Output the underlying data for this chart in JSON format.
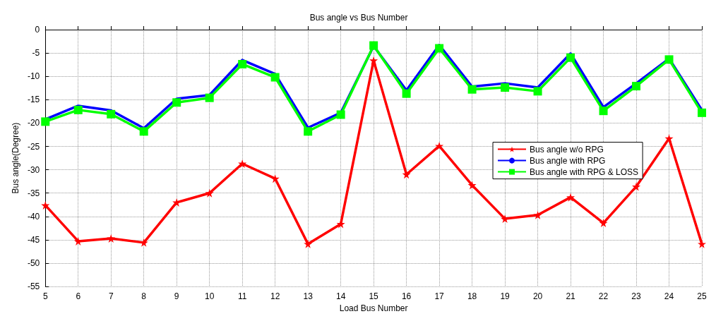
{
  "chart_data": {
    "type": "line",
    "title": "Bus angle vs Bus Number",
    "xlabel": "Load Bus Number",
    "ylabel": "Bus angle(Degree)",
    "x": [
      5,
      6,
      7,
      8,
      9,
      10,
      11,
      12,
      13,
      14,
      15,
      16,
      17,
      18,
      19,
      20,
      21,
      22,
      23,
      24,
      25
    ],
    "xlim": [
      5,
      25
    ],
    "xticks": [
      5,
      6,
      7,
      8,
      9,
      10,
      11,
      12,
      13,
      14,
      15,
      16,
      17,
      18,
      19,
      20,
      21,
      22,
      23,
      24,
      25
    ],
    "ylim": [
      -55,
      0
    ],
    "yticks": [
      -55,
      -50,
      -45,
      -40,
      -35,
      -30,
      -25,
      -20,
      -15,
      -10,
      -5,
      0
    ],
    "grid": true,
    "legend": "right",
    "line_style": "solid",
    "series": [
      {
        "name": "Bus angle w/o RPG",
        "color": "#ff0000",
        "marker": "star",
        "values": [
          -37.6,
          -45.3,
          -44.7,
          -45.6,
          -37,
          -35,
          -28.7,
          -31.9,
          -45.9,
          -41.6,
          -6.6,
          -31,
          -24.9,
          -33.3,
          -40.5,
          -39.7,
          -35.9,
          -41.4,
          -33.6,
          -23.3,
          -45.9
        ]
      },
      {
        "name": "Bus angle with RPG",
        "color": "#0000ff",
        "marker": "none",
        "values": [
          -19.2,
          -16.3,
          -17.3,
          -21.1,
          -14.8,
          -14,
          -6.5,
          -9.5,
          -21,
          -17.8,
          -3.5,
          -13,
          -3.3,
          -12.2,
          -11.5,
          -12.4,
          -5.1,
          -16.6,
          -11.5,
          -6.2,
          -17.2
        ]
      },
      {
        "name": "Bus angle with RPG & LOSS",
        "color": "#00ff00",
        "marker": "square",
        "values": [
          -19.7,
          -17.2,
          -18.1,
          -21.8,
          -15.6,
          -14.6,
          -7.4,
          -10.2,
          -21.8,
          -18.2,
          -3.4,
          -13.7,
          -4,
          -12.8,
          -12.4,
          -13.2,
          -6,
          -17.4,
          -12.1,
          -6.4,
          -17.8
        ]
      }
    ]
  }
}
